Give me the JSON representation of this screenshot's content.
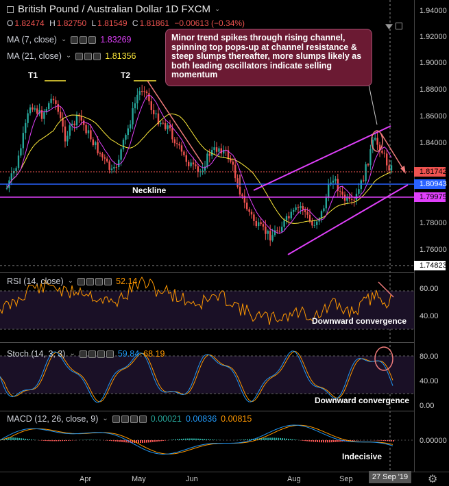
{
  "header": {
    "symbol_title": "British Pound / Australian Dollar  1D  FXCM",
    "ohlc": {
      "o_label": "O",
      "o": "1.82474",
      "h_label": "H",
      "h": "1.82750",
      "l_label": "L",
      "l": "1.81549",
      "c_label": "C",
      "c": "1.81861",
      "change": "−0.00613 (−0.34%)"
    },
    "ma7": {
      "label": "MA (7, close)",
      "value": "1.83269",
      "color": "#e040fb"
    },
    "ma21": {
      "label": "MA (21, close)",
      "value": "1.81356",
      "color": "#ffeb3b"
    }
  },
  "annotations": {
    "note": "Minor trend spikes through rising channel, spinning top pops-up at channel resistance & steep slumps thereafter, more slumps likely as both leading oscillators indicate selling momentum",
    "t1": "T1",
    "t2": "T2",
    "neckline": "Neckline",
    "rsi_note": "Downward convergence",
    "stoch_note": "Downward convergence",
    "macd_note": "Indecisive"
  },
  "price_axis": {
    "ticks": [
      "1.94000",
      "1.92000",
      "1.90000",
      "1.88000",
      "1.86000",
      "1.84000",
      "1.78000",
      "1.76000"
    ],
    "tags": [
      {
        "value": "1.81742",
        "color": "#ef5350",
        "text_color": "#000"
      },
      {
        "value": "1.80943",
        "color": "#2962ff",
        "text_color": "#fff"
      },
      {
        "value": "1.79975",
        "color": "#e040fb",
        "text_color": "#000"
      }
    ],
    "crosshair_value": "1.74823"
  },
  "rsi": {
    "label": "RSI (14, close)",
    "value": "52.14",
    "color": "#ff9800",
    "ticks": [
      "60.00",
      "40.00"
    ]
  },
  "stoch": {
    "label": "Stoch (14, 3, 3)",
    "k": "59.84",
    "d": "68.19",
    "k_color": "#2196f3",
    "d_color": "#ff9800",
    "ticks": [
      "80.00",
      "40.00",
      "0.00"
    ]
  },
  "macd": {
    "label": "MACD (12, 26, close, 9)",
    "hist": "0.00021",
    "macd": "0.00836",
    "signal": "0.00815",
    "macd_color": "#2196f3",
    "signal_color": "#ff9800",
    "ticks": [
      "0.00000"
    ]
  },
  "time_axis": {
    "labels": [
      "Apr",
      "May",
      "Jun",
      "Aug",
      "Sep"
    ],
    "current_date": "27 Sep '19"
  }
}
